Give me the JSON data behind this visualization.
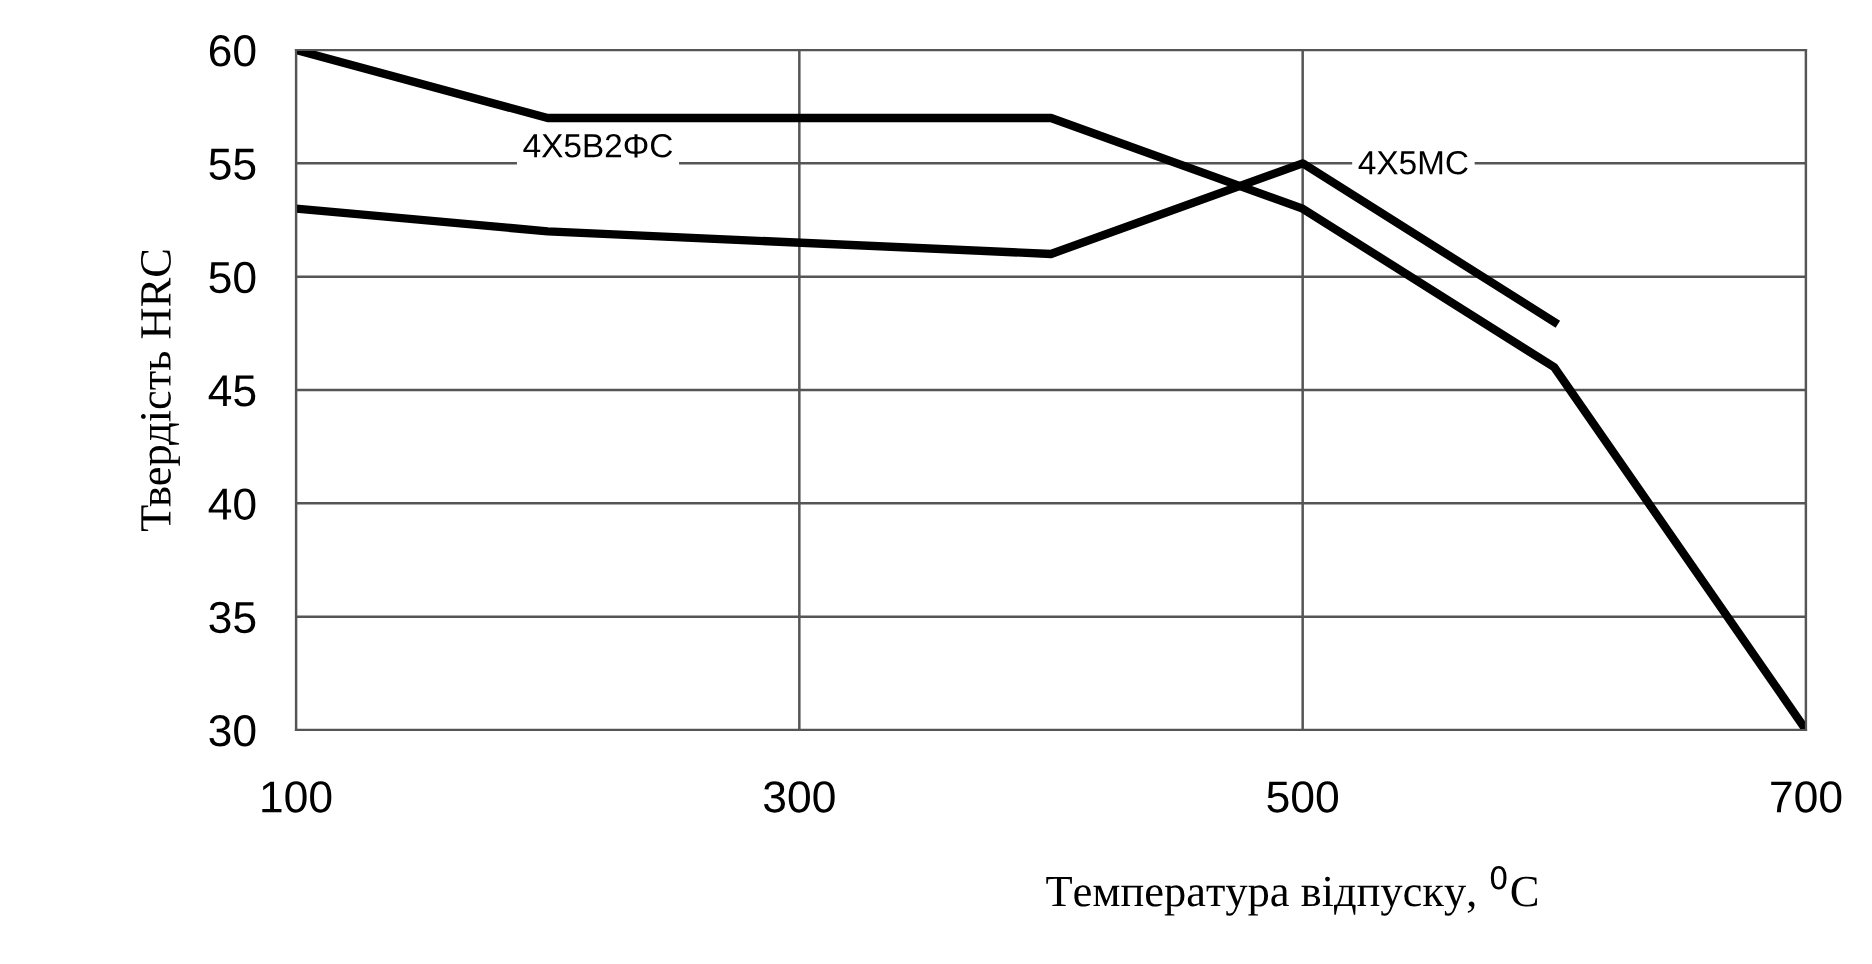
{
  "chart_data": {
    "type": "line",
    "xlabel": "Температура відпуску, $^{0}$C",
    "ylabel": "Твердість HRC",
    "xlim": [
      100,
      700
    ],
    "xticks": [
      100,
      300,
      500,
      700
    ],
    "ylim": [
      30,
      60
    ],
    "yticks": [
      30,
      35,
      40,
      45,
      50,
      55,
      60
    ],
    "grid": true,
    "legend": false,
    "marker": "none",
    "line_style": "solid",
    "series": [
      {
        "name": "4X5MC",
        "color": "#000000",
        "x": [
          100,
          200,
          400,
          500,
          600
        ],
        "values": [
          53,
          52,
          51,
          55,
          48
        ]
      },
      {
        "name": "4X5B2ΦC",
        "color": "#000000",
        "x": [
          100,
          200,
          400,
          500,
          600,
          700
        ],
        "values": [
          60,
          57,
          57,
          53,
          46,
          30
        ]
      }
    ]
  }
}
